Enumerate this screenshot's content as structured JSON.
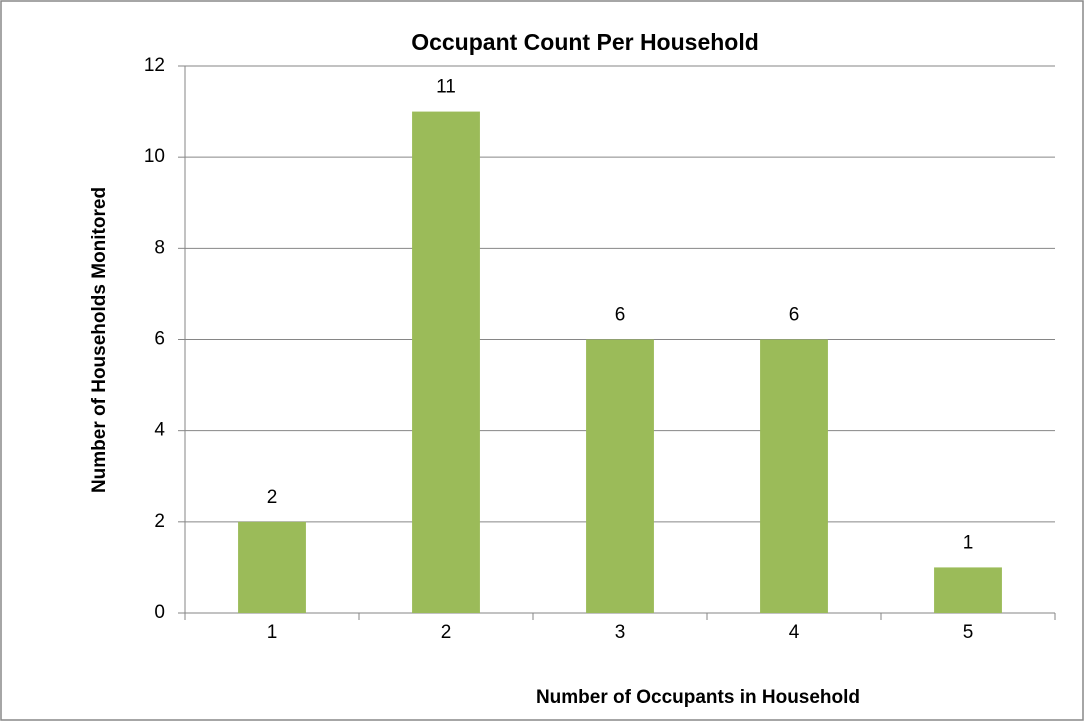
{
  "chart_data": {
    "type": "bar",
    "title": "Occupant Count Per Household",
    "x_label": "Number of Occupants in Household",
    "y_label": "Number of Households Monitored",
    "categories": [
      "1",
      "2",
      "3",
      "4",
      "5"
    ],
    "values": [
      2,
      11,
      6,
      6,
      1
    ],
    "color": "#9bbb59",
    "ylim": [
      0,
      12
    ],
    "yticks": [
      0,
      2,
      4,
      6,
      8,
      10,
      12
    ],
    "grid": true
  }
}
